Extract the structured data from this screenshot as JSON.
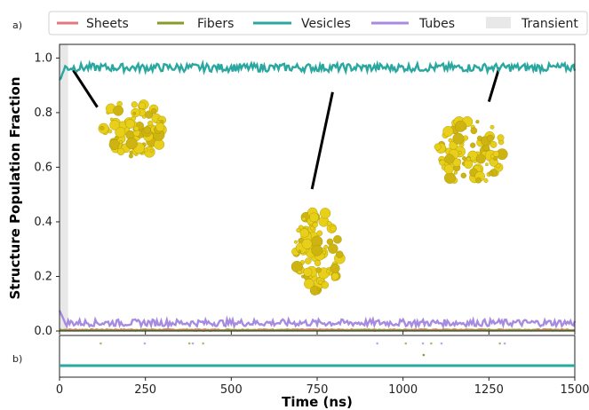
{
  "chart_data": {
    "type": "line",
    "panel_labels": [
      "a)",
      "b)"
    ],
    "xlabel": "Time (ns)",
    "ylabel": "Structure Population Fraction",
    "xlim": [
      0,
      1500
    ],
    "ylim": [
      0,
      1.05
    ],
    "x_ticks": [
      "0",
      "250",
      "500",
      "750",
      "1000",
      "1250",
      "1500"
    ],
    "y_ticks": [
      "0.0",
      "0.2",
      "0.4",
      "0.6",
      "0.8",
      "1.0"
    ],
    "legend_placement": "top",
    "transient": {
      "label": "Transient",
      "range": [
        0,
        25
      ],
      "color": "#e8e8e8"
    },
    "series": [
      {
        "name": "Sheets",
        "color": "#e07a80",
        "mean": 0.005
      },
      {
        "name": "Fibers",
        "color": "#8a9a2a",
        "mean": 0.003
      },
      {
        "name": "Vesicles",
        "color": "#2aa8a0",
        "mean": 0.965,
        "start": 0.92
      },
      {
        "name": "Tubes",
        "color": "#a78be0",
        "mean": 0.03,
        "start": 0.075
      }
    ],
    "lower_panel": {
      "vesicles_fraction": 1.0,
      "dots_x": [
        120,
        248,
        378,
        388,
        418,
        925,
        1008,
        1058,
        1082,
        1112,
        1282,
        1296
      ],
      "fiber_dot_x": [
        1060
      ],
      "dot_colors": [
        "#a0c070",
        "#b0b0e0"
      ]
    },
    "insets": [
      {
        "name": "cluster-left",
        "line_from": [
          40,
          0.955
        ],
        "line_to": [
          110,
          0.82
        ]
      },
      {
        "name": "cluster-middle",
        "line_from": [
          795,
          0.875
        ],
        "line_to": [
          735,
          0.52
        ]
      },
      {
        "name": "cluster-right",
        "line_from": [
          1280,
          0.965
        ],
        "line_to": [
          1250,
          0.84
        ]
      }
    ]
  }
}
